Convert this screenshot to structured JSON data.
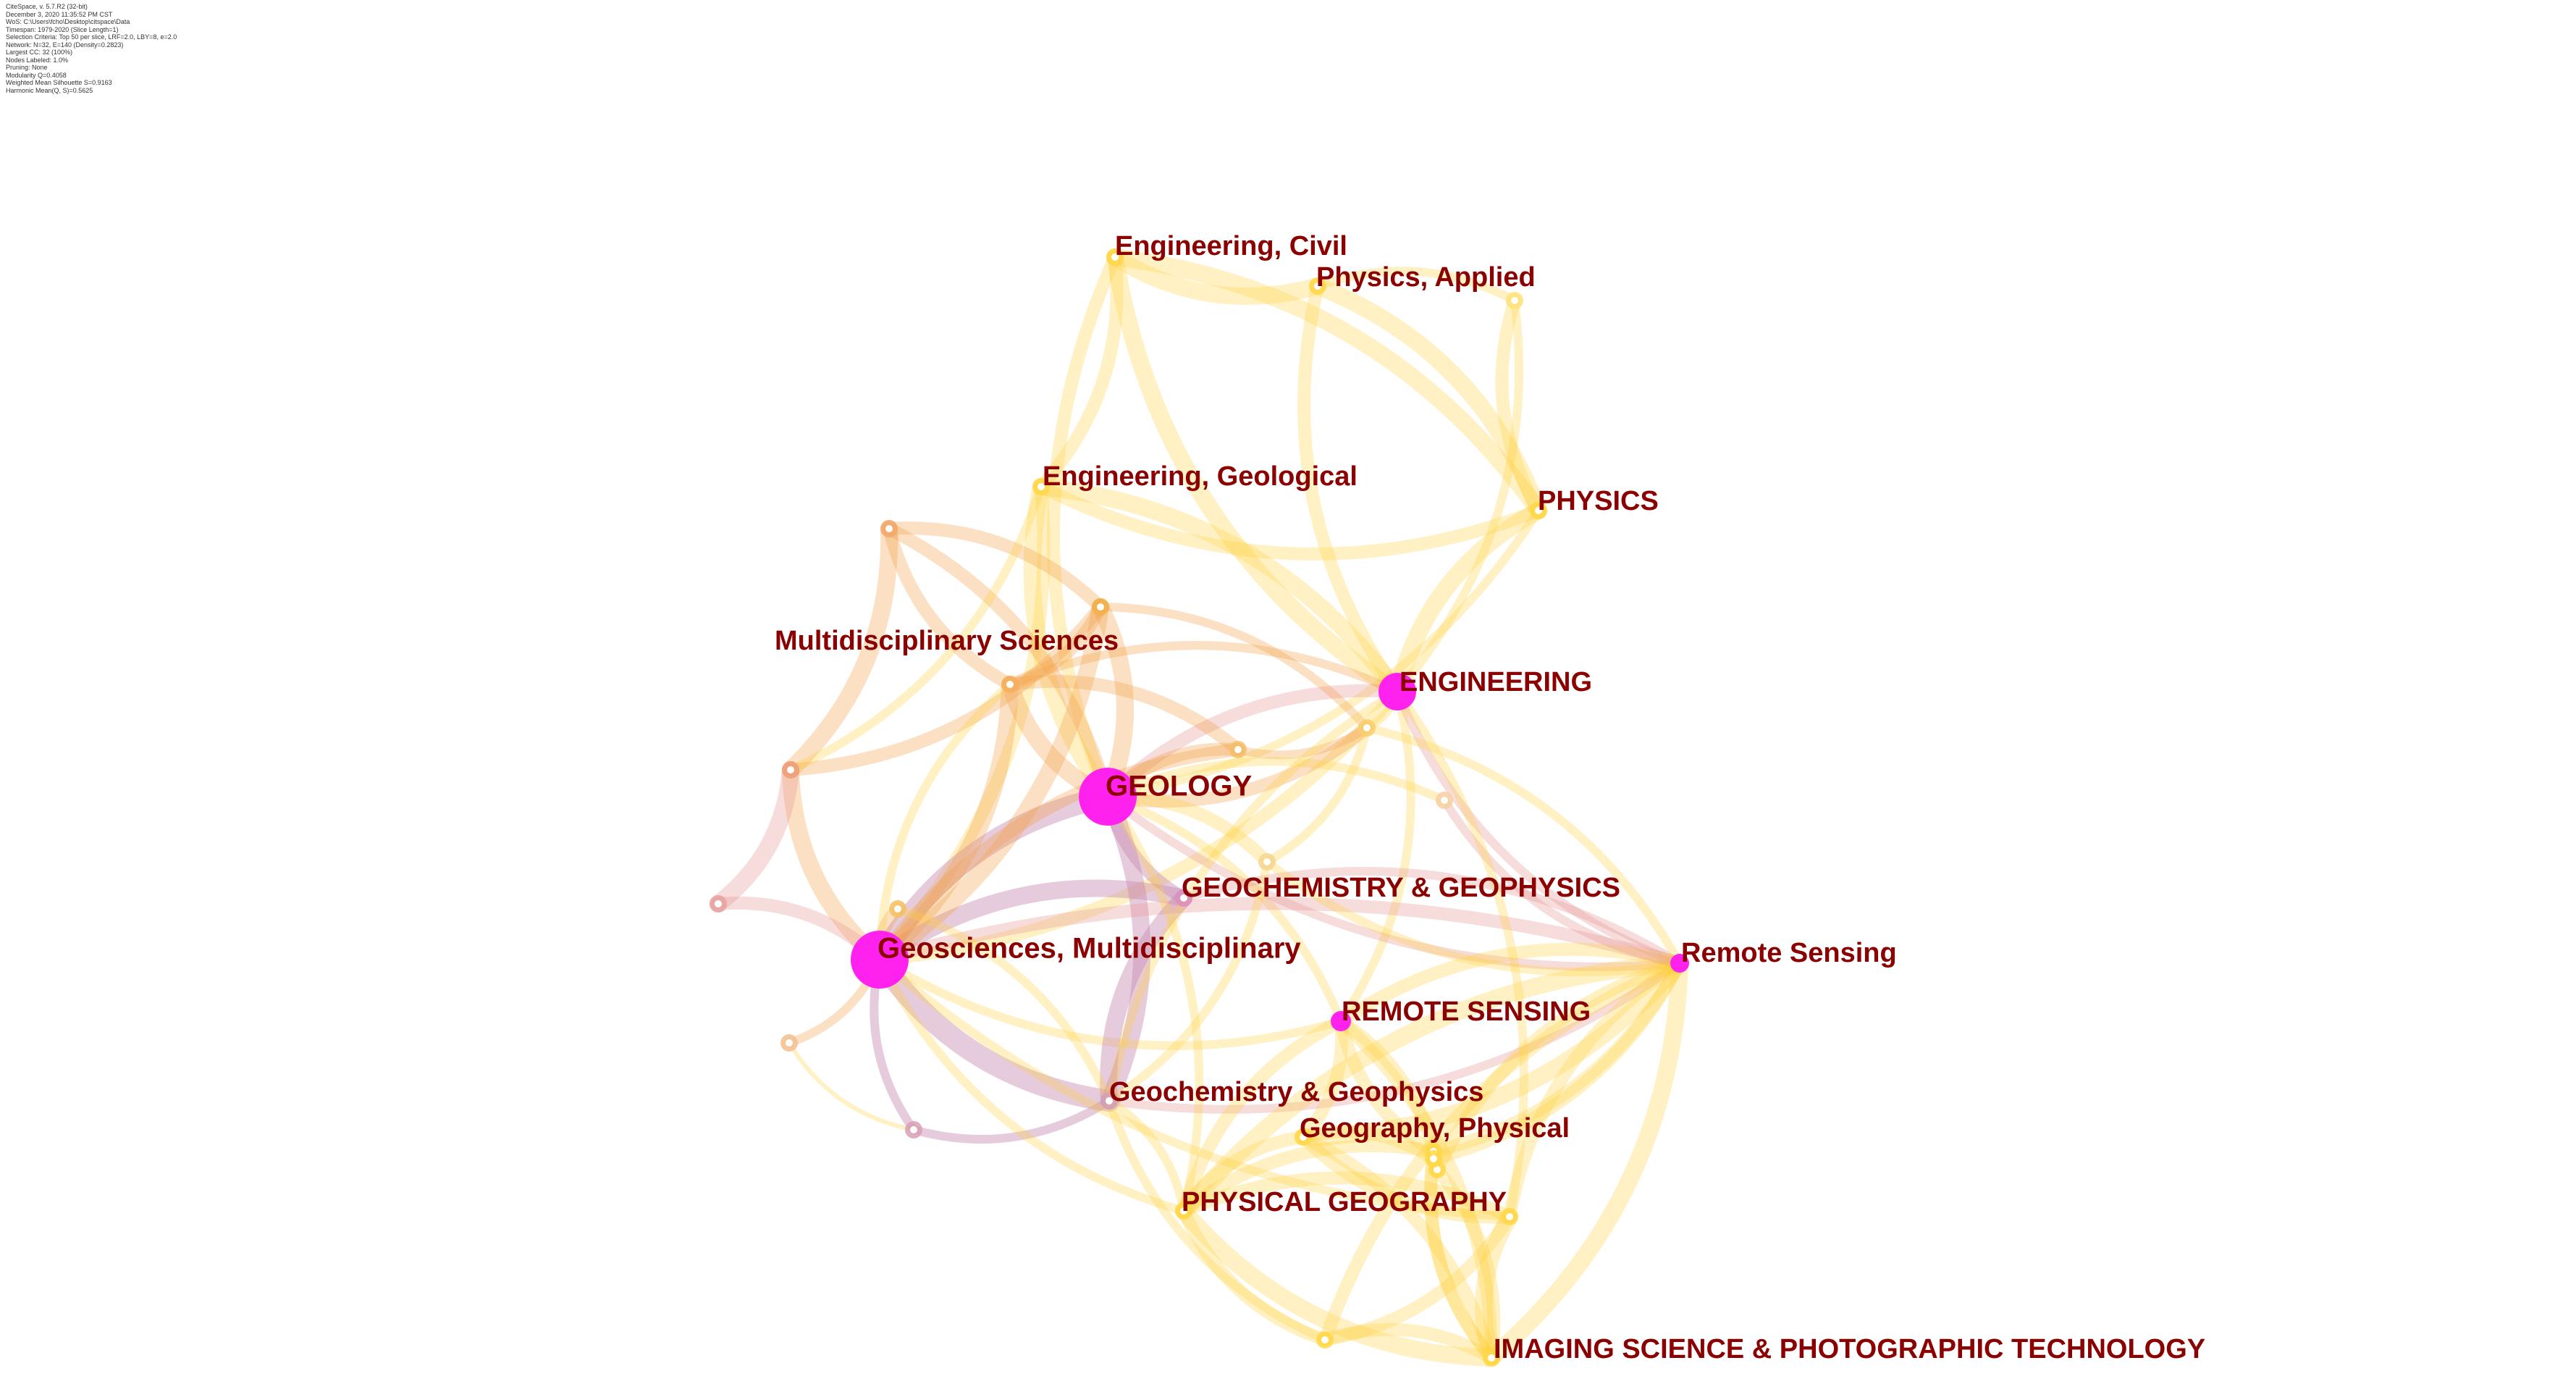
{
  "info_lines": [
    "CiteSpace, v. 5.7.R2 (32-bit)",
    "December 3, 2020 11:35:52 PM CST",
    "WoS: C:\\Users\\fcho\\Desktop\\citspace\\Data",
    "Timespan: 1979-2020 (Slice Length=1)",
    "Selection Criteria: Top 50 per slice, LRF=2.0, LBY=8, e=2.0",
    "Network: N=32, E=140 (Density=0.2823)",
    "Largest CC: 32 (100%)",
    "Nodes Labeled: 1.0%",
    "Pruning: None",
    "Modularity Q=0.4058",
    "Weighted Mean Silhouette S=0.9163",
    "Harmonic Mean(Q, S)=0.5625"
  ],
  "colors": {
    "background": "#ffffff",
    "label": "#8b0000",
    "hub_node": "#ff22ee",
    "yellow_edge": "#ffd23a",
    "orange_edge": "#f2a24a",
    "purple_edge": "#c78bb2",
    "pink_edge": "#e79a9a"
  },
  "nodes": [
    {
      "id": "geology",
      "label": "GEOLOGY",
      "type": "hub"
    },
    {
      "id": "geosci",
      "label": "Geosciences, Multidisciplinary",
      "type": "hub"
    },
    {
      "id": "engineering",
      "label": "ENGINEERING",
      "type": "hub"
    },
    {
      "id": "remote_caps",
      "label": "REMOTE SENSING",
      "type": "hub"
    },
    {
      "id": "remote",
      "label": "Remote Sensing",
      "type": "hub"
    },
    {
      "id": "geochem_caps",
      "label": "GEOCHEMISTRY & GEOPHYSICS",
      "type": "ring"
    },
    {
      "id": "geochem",
      "label": "Geochemistry & Geophysics",
      "type": "ring"
    },
    {
      "id": "eng_civil",
      "label": "Engineering, Civil",
      "type": "ring"
    },
    {
      "id": "phys_applied",
      "label": "Physics, Applied",
      "type": "ring"
    },
    {
      "id": "eng_geol",
      "label": "Engineering, Geological",
      "type": "ring"
    },
    {
      "id": "physics",
      "label": "PHYSICS",
      "type": "ring"
    },
    {
      "id": "multi",
      "label": "Multidisciplinary Sciences",
      "type": "ring"
    },
    {
      "id": "geo_phys",
      "label": "Geography, Physical",
      "type": "ring"
    },
    {
      "id": "phys_geo",
      "label": "PHYSICAL GEOGRAPHY",
      "type": "ring"
    },
    {
      "id": "imaging",
      "label": "IMAGING SCIENCE & PHOTOGRAPHIC TECHNOLOGY",
      "type": "ring"
    },
    {
      "id": "u1",
      "label": "",
      "type": "ring"
    },
    {
      "id": "u2",
      "label": "",
      "type": "ring"
    },
    {
      "id": "u3",
      "label": "",
      "type": "ring"
    },
    {
      "id": "u4",
      "label": "",
      "type": "ring"
    },
    {
      "id": "u5",
      "label": "",
      "type": "ring"
    },
    {
      "id": "u6",
      "label": "",
      "type": "ring"
    },
    {
      "id": "u7",
      "label": "",
      "type": "ring"
    },
    {
      "id": "u8",
      "label": "",
      "type": "ring"
    },
    {
      "id": "u9",
      "label": "",
      "type": "ring"
    },
    {
      "id": "u10",
      "label": "",
      "type": "ring"
    },
    {
      "id": "u11",
      "label": "",
      "type": "ring"
    },
    {
      "id": "u12",
      "label": "",
      "type": "ring"
    },
    {
      "id": "u13",
      "label": "",
      "type": "ring"
    },
    {
      "id": "u14",
      "label": "",
      "type": "ring"
    },
    {
      "id": "u15",
      "label": "",
      "type": "ring"
    },
    {
      "id": "u16",
      "label": "",
      "type": "ring"
    },
    {
      "id": "u17",
      "label": "",
      "type": "ring"
    }
  ],
  "edges": [
    [
      "eng_civil",
      "phys_applied",
      "yellow",
      4
    ],
    [
      "eng_civil",
      "physics",
      "yellow",
      4
    ],
    [
      "eng_civil",
      "engineering",
      "yellow",
      4
    ],
    [
      "eng_civil",
      "eng_geol",
      "yellow",
      3
    ],
    [
      "eng_civil",
      "geology",
      "yellow",
      3
    ],
    [
      "phys_applied",
      "physics",
      "yellow",
      4
    ],
    [
      "phys_applied",
      "engineering",
      "yellow",
      3
    ],
    [
      "phys_applied",
      "u1",
      "yellow",
      2
    ],
    [
      "u1",
      "physics",
      "yellow",
      3
    ],
    [
      "u1",
      "engineering",
      "yellow",
      2
    ],
    [
      "eng_geol",
      "physics",
      "yellow",
      3
    ],
    [
      "eng_geol",
      "engineering",
      "yellow",
      4
    ],
    [
      "eng_geol",
      "geology",
      "yellow",
      4
    ],
    [
      "eng_geol",
      "geosci",
      "yellow",
      3
    ],
    [
      "physics",
      "engineering",
      "yellow",
      4
    ],
    [
      "physics",
      "geology",
      "yellow",
      2
    ],
    [
      "engineering",
      "geology",
      "pink",
      3
    ],
    [
      "engineering",
      "geosci",
      "yellow",
      3
    ],
    [
      "engineering",
      "remote",
      "pink",
      2
    ],
    [
      "engineering",
      "remote_caps",
      "yellow",
      2
    ],
    [
      "engineering",
      "multi",
      "orange",
      2
    ],
    [
      "engineering",
      "u6",
      "yellow",
      2
    ],
    [
      "geology",
      "geosci",
      "purple",
      5
    ],
    [
      "geology",
      "geochem",
      "purple",
      4
    ],
    [
      "geology",
      "geochem_caps",
      "purple",
      3
    ],
    [
      "geology",
      "multi",
      "orange",
      4
    ],
    [
      "geology",
      "u4",
      "orange",
      4
    ],
    [
      "geology",
      "u5",
      "orange",
      3
    ],
    [
      "geology",
      "u6",
      "orange",
      3
    ],
    [
      "geology",
      "u7",
      "yellow",
      3
    ],
    [
      "geology",
      "remote",
      "pink",
      2
    ],
    [
      "geology",
      "remote_caps",
      "yellow",
      2
    ],
    [
      "geosci",
      "geochem",
      "purple",
      5
    ],
    [
      "geosci",
      "geochem_caps",
      "purple",
      4
    ],
    [
      "geosci",
      "multi",
      "orange",
      4
    ],
    [
      "geosci",
      "u3",
      "orange",
      4
    ],
    [
      "geosci",
      "u4",
      "orange",
      4
    ],
    [
      "geosci",
      "u8",
      "orange",
      3
    ],
    [
      "geosci",
      "u9",
      "pink",
      3
    ],
    [
      "geosci",
      "u10",
      "orange",
      2
    ],
    [
      "geosci",
      "u11",
      "purple",
      2
    ],
    [
      "geosci",
      "remote",
      "pink",
      3
    ],
    [
      "geosci",
      "remote_caps",
      "yellow",
      2
    ],
    [
      "geosci",
      "u5",
      "orange",
      3
    ],
    [
      "u3",
      "u2",
      "orange",
      4
    ],
    [
      "u3",
      "u9",
      "pink",
      4
    ],
    [
      "u3",
      "u4",
      "orange",
      3
    ],
    [
      "u2",
      "u4",
      "orange",
      3
    ],
    [
      "u2",
      "multi",
      "orange",
      3
    ],
    [
      "u2",
      "geology",
      "orange",
      3
    ],
    [
      "multi",
      "u4",
      "orange",
      3
    ],
    [
      "multi",
      "u5",
      "orange",
      3
    ],
    [
      "u5",
      "u6",
      "orange",
      2
    ],
    [
      "u4",
      "u6",
      "orange",
      2
    ],
    [
      "geochem_caps",
      "geochem",
      "purple",
      4
    ],
    [
      "geochem_caps",
      "remote",
      "pink",
      2
    ],
    [
      "geochem",
      "remote",
      "pink",
      2
    ],
    [
      "geochem",
      "u11",
      "purple",
      2
    ],
    [
      "remote",
      "remote_caps",
      "yellow",
      3
    ],
    [
      "remote",
      "geo_phys",
      "yellow",
      4
    ],
    [
      "remote",
      "phys_geo",
      "yellow",
      4
    ],
    [
      "remote",
      "imaging",
      "yellow",
      4
    ],
    [
      "remote",
      "u12",
      "yellow",
      3
    ],
    [
      "remote",
      "u13",
      "yellow",
      3
    ],
    [
      "remote",
      "u14",
      "yellow",
      3
    ],
    [
      "remote",
      "u15",
      "yellow",
      3
    ],
    [
      "remote",
      "u16",
      "yellow",
      3
    ],
    [
      "remote_caps",
      "geo_phys",
      "yellow",
      3
    ],
    [
      "remote_caps",
      "phys_geo",
      "yellow",
      3
    ],
    [
      "remote_caps",
      "imaging",
      "yellow",
      3
    ],
    [
      "remote_caps",
      "u13",
      "yellow",
      3
    ],
    [
      "remote_caps",
      "u14",
      "yellow",
      3
    ],
    [
      "geo_phys",
      "phys_geo",
      "yellow",
      3
    ],
    [
      "geo_phys",
      "imaging",
      "yellow",
      3
    ],
    [
      "geo_phys",
      "u12",
      "yellow",
      3
    ],
    [
      "geo_phys",
      "u15",
      "yellow",
      3
    ],
    [
      "phys_geo",
      "imaging",
      "yellow",
      4
    ],
    [
      "phys_geo",
      "u12",
      "yellow",
      3
    ],
    [
      "phys_geo",
      "u16",
      "yellow",
      3
    ],
    [
      "phys_geo",
      "u13",
      "yellow",
      3
    ],
    [
      "u12",
      "imaging",
      "yellow",
      4
    ],
    [
      "u12",
      "u16",
      "yellow",
      3
    ],
    [
      "u13",
      "imaging",
      "yellow",
      3
    ],
    [
      "u14",
      "imaging",
      "yellow",
      3
    ],
    [
      "u15",
      "imaging",
      "yellow",
      3
    ],
    [
      "u16",
      "imaging",
      "yellow",
      3
    ],
    [
      "u13",
      "u14",
      "yellow",
      2
    ],
    [
      "u14",
      "u15",
      "yellow",
      2
    ],
    [
      "u7",
      "remote",
      "yellow",
      2
    ],
    [
      "u7",
      "geochem",
      "yellow",
      2
    ],
    [
      "u7",
      "u6",
      "yellow",
      2
    ],
    [
      "u6",
      "remote",
      "yellow",
      2
    ],
    [
      "u17",
      "remote",
      "pink",
      2
    ],
    [
      "geology",
      "u17",
      "yellow",
      2
    ],
    [
      "engineering",
      "geochem",
      "yellow",
      2
    ],
    [
      "engineering",
      "u12",
      "yellow",
      2
    ],
    [
      "geosci",
      "phys_geo",
      "yellow",
      2
    ],
    [
      "geology",
      "phys_geo",
      "yellow",
      2
    ],
    [
      "geosci",
      "u12",
      "yellow",
      2
    ],
    [
      "geochem",
      "phys_geo",
      "yellow",
      2
    ],
    [
      "geochem",
      "u16",
      "yellow",
      2
    ],
    [
      "u8",
      "geochem",
      "yellow",
      2
    ],
    [
      "multi",
      "geosci",
      "yellow",
      2
    ],
    [
      "eng_geol",
      "u3",
      "yellow",
      2
    ],
    [
      "u10",
      "u11",
      "yellow",
      1
    ]
  ]
}
